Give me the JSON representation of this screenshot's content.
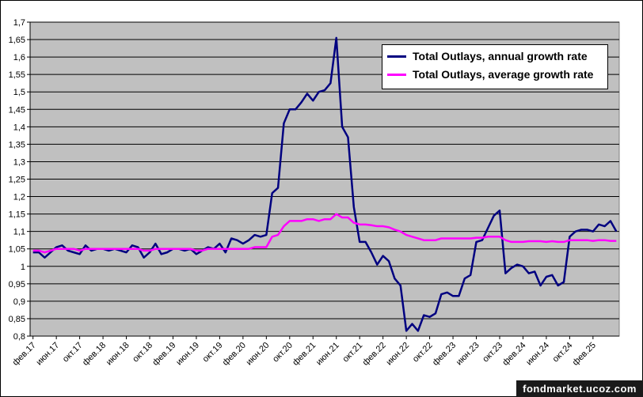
{
  "chart_data": {
    "type": "line",
    "categories": [
      "фев.17",
      null,
      null,
      null,
      "июн.17",
      null,
      null,
      null,
      "окт.17",
      null,
      null,
      null,
      "фев.18",
      null,
      null,
      null,
      "июн.18",
      null,
      null,
      null,
      "окт.18",
      null,
      null,
      null,
      "фев.19",
      null,
      null,
      null,
      "июн.19",
      null,
      null,
      null,
      "окт.19",
      null,
      null,
      null,
      "фев.20",
      null,
      null,
      null,
      "июн.20",
      null,
      null,
      null,
      "окт.20",
      null,
      null,
      null,
      "фев.21",
      null,
      null,
      null,
      "июн.21",
      null,
      null,
      null,
      "окт.21",
      null,
      null,
      null,
      "фев.22",
      null,
      null,
      null,
      "июн.22",
      null,
      null,
      null,
      "окт.22",
      null,
      null,
      null,
      "фев.23",
      null,
      null,
      null,
      "июн.23",
      null,
      null,
      null,
      "окт.23",
      null,
      null,
      null,
      "фев.24",
      null,
      null,
      null,
      "июн.24",
      null,
      null,
      null,
      "окт.24",
      null,
      null,
      null,
      "фев.25",
      null,
      null,
      null,
      null
    ],
    "series": [
      {
        "name": "Total Outlays, annual growth rate",
        "color": "#000080",
        "values": [
          1.04,
          1.04,
          1.025,
          1.04,
          1.055,
          1.06,
          1.045,
          1.04,
          1.035,
          1.06,
          1.045,
          1.05,
          1.05,
          1.045,
          1.05,
          1.045,
          1.04,
          1.06,
          1.055,
          1.025,
          1.04,
          1.065,
          1.035,
          1.04,
          1.05,
          1.05,
          1.045,
          1.05,
          1.035,
          1.045,
          1.055,
          1.05,
          1.065,
          1.04,
          1.08,
          1.075,
          1.065,
          1.075,
          1.09,
          1.085,
          1.09,
          1.21,
          1.225,
          1.41,
          1.45,
          1.45,
          1.47,
          1.495,
          1.475,
          1.5,
          1.505,
          1.525,
          1.655,
          1.4,
          1.37,
          1.17,
          1.07,
          1.07,
          1.04,
          1.005,
          1.03,
          1.015,
          0.965,
          0.945,
          0.815,
          0.835,
          0.815,
          0.86,
          0.855,
          0.865,
          0.92,
          0.925,
          0.915,
          0.915,
          0.965,
          0.975,
          1.07,
          1.075,
          1.11,
          1.145,
          1.16,
          0.98,
          0.995,
          1.005,
          1.0,
          0.98,
          0.985,
          0.945,
          0.97,
          0.975,
          0.945,
          0.955,
          1.085,
          1.1,
          1.105,
          1.105,
          1.1,
          1.12,
          1.115,
          1.13,
          1.1
        ]
      },
      {
        "name": "Total Outlays, average growth rate",
        "color": "#ff00ff",
        "values": [
          1.045,
          1.045,
          1.04,
          1.045,
          1.05,
          1.05,
          1.05,
          1.05,
          1.045,
          1.05,
          1.05,
          1.05,
          1.05,
          1.05,
          1.05,
          1.05,
          1.05,
          1.05,
          1.05,
          1.045,
          1.045,
          1.05,
          1.05,
          1.05,
          1.05,
          1.05,
          1.05,
          1.05,
          1.045,
          1.045,
          1.05,
          1.05,
          1.05,
          1.05,
          1.05,
          1.05,
          1.05,
          1.05,
          1.055,
          1.055,
          1.055,
          1.085,
          1.09,
          1.115,
          1.13,
          1.13,
          1.13,
          1.135,
          1.135,
          1.13,
          1.135,
          1.135,
          1.15,
          1.14,
          1.14,
          1.125,
          1.12,
          1.12,
          1.118,
          1.115,
          1.115,
          1.112,
          1.105,
          1.1,
          1.09,
          1.085,
          1.08,
          1.075,
          1.075,
          1.075,
          1.08,
          1.08,
          1.08,
          1.08,
          1.08,
          1.08,
          1.082,
          1.082,
          1.085,
          1.085,
          1.085,
          1.075,
          1.07,
          1.07,
          1.07,
          1.072,
          1.072,
          1.072,
          1.07,
          1.072,
          1.07,
          1.07,
          1.075,
          1.075,
          1.075,
          1.075,
          1.073,
          1.075,
          1.075,
          1.073,
          1.073
        ]
      }
    ],
    "ylim": [
      0.8,
      1.7
    ],
    "yticks": [
      {
        "value": 0.8,
        "label": "0,8"
      },
      {
        "value": 0.85,
        "label": "0,85"
      },
      {
        "value": 0.9,
        "label": "0,9"
      },
      {
        "value": 0.95,
        "label": "0,95"
      },
      1,
      {
        "value": 1.05,
        "label": "1,05"
      },
      {
        "value": 1.1,
        "label": "1,1"
      },
      {
        "value": 1.15,
        "label": "1,15"
      },
      {
        "value": 1.2,
        "label": "1,2"
      },
      {
        "value": 1.25,
        "label": "1,25"
      },
      {
        "value": 1.3,
        "label": "1,3"
      },
      {
        "value": 1.35,
        "label": "1,35"
      },
      {
        "value": 1.4,
        "label": "1,4"
      },
      {
        "value": 1.45,
        "label": "1,45"
      },
      {
        "value": 1.5,
        "label": "1,5"
      },
      {
        "value": 1.55,
        "label": "1,55"
      },
      {
        "value": 1.6,
        "label": "1,6"
      },
      {
        "value": 1.65,
        "label": "1,65"
      },
      {
        "value": 1.7,
        "label": "1,7"
      }
    ],
    "grid": true,
    "legend": "upper-right",
    "watermark": "fondmarket.ucoz.com"
  }
}
